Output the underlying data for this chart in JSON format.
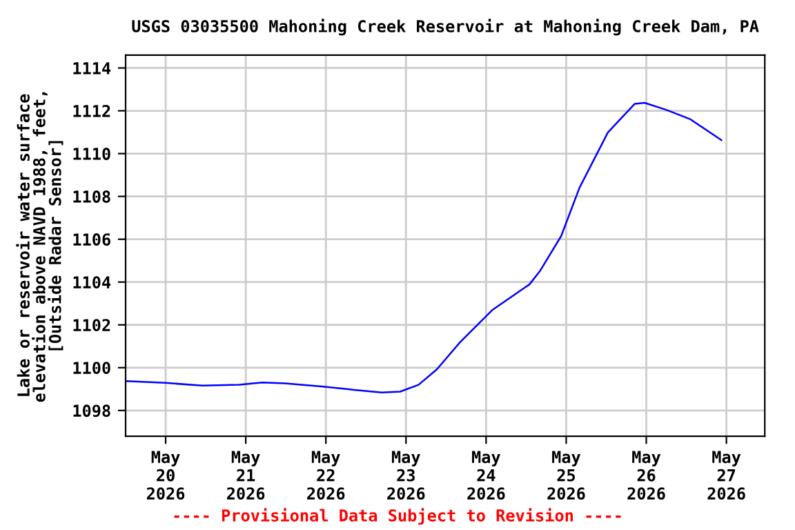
{
  "chart_data": {
    "type": "line",
    "title": "USGS 03035500 Mahoning Creek Reservoir at Mahoning Creek Dam, PA",
    "ylabel": "Lake or reservoir water surface\nelevation above NAVD 1988, feet,\n[Outside Radar Sensor]",
    "x": [
      "2026-05-19T12:15",
      "2026-05-20T00:00",
      "2026-05-20T11:00",
      "2026-05-20T22:00",
      "2026-05-21T05:00",
      "2026-05-21T11:45",
      "2026-05-21T22:45",
      "2026-05-22T11:15",
      "2026-05-22T16:45",
      "2026-05-22T22:15",
      "2026-05-23T03:45",
      "2026-05-23T09:15",
      "2026-05-23T14:30",
      "2026-05-23T16:15",
      "2026-05-24T02:00",
      "2026-05-24T13:00",
      "2026-05-24T16:15",
      "2026-05-24T22:30",
      "2026-05-25T04:00",
      "2026-05-25T08:15",
      "2026-05-25T12:30",
      "2026-05-25T20:30",
      "2026-05-25T23:30",
      "2026-05-26T06:15",
      "2026-05-26T13:15",
      "2026-05-26T22:30"
    ],
    "series": [
      {
        "color": "#0000ff",
        "values": [
          1099.37,
          1099.29,
          1099.16,
          1099.2,
          1099.31,
          1099.27,
          1099.12,
          1098.92,
          1098.84,
          1098.88,
          1099.2,
          1099.92,
          1100.88,
          1101.2,
          1102.71,
          1103.89,
          1104.54,
          1106.15,
          1108.41,
          1109.7,
          1110.99,
          1112.32,
          1112.37,
          1112.03,
          1111.6,
          1110.63
        ]
      }
    ],
    "xlim": [
      "2026-05-19T12:00",
      "2026-05-27T11:30"
    ],
    "xticks": [
      {
        "value": "2026-05-20",
        "label": "May\n20\n2026"
      },
      {
        "value": "2026-05-21",
        "label": "May\n21\n2026"
      },
      {
        "value": "2026-05-22",
        "label": "May\n22\n2026"
      },
      {
        "value": "2026-05-23",
        "label": "May\n23\n2026"
      },
      {
        "value": "2026-05-24",
        "label": "May\n24\n2026"
      },
      {
        "value": "2026-05-25",
        "label": "May\n25\n2026"
      },
      {
        "value": "2026-05-26",
        "label": "May\n26\n2026"
      },
      {
        "value": "2026-05-27",
        "label": "May\n27\n2026"
      }
    ],
    "ylim": [
      1096.8,
      1114.6
    ],
    "yticks": [
      1098,
      1100,
      1102,
      1104,
      1106,
      1108,
      1110,
      1112,
      1114
    ],
    "grid": true,
    "marker": "none",
    "line_style": "solid",
    "annotations": [
      "---- Provisional Data Subject to Revision ----"
    ]
  }
}
